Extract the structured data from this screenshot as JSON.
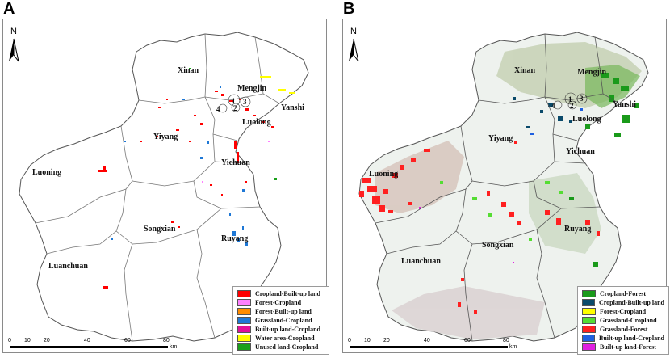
{
  "panels": [
    {
      "letter": "A",
      "north": "N",
      "districts": [
        "Xinan",
        "Mengjin",
        "Yanshi",
        "Luolong",
        "Yiyang",
        "Yichuan",
        "Luoning",
        "Songxian",
        "Ruyang",
        "Luanchuan"
      ],
      "zones": [
        "1",
        "2",
        "3",
        "4"
      ],
      "legend": [
        {
          "label": "Cropland-Built-up land",
          "color": "#ff0000"
        },
        {
          "label": "Forest-Cropland",
          "color": "#ff80ff"
        },
        {
          "label": "Forest-Built-up land",
          "color": "#ff8c00"
        },
        {
          "label": "Grassland-Cropland",
          "color": "#1e78d6"
        },
        {
          "label": "Built-up land-Cropland",
          "color": "#e0129a"
        },
        {
          "label": "Water area-Cropland",
          "color": "#ffff00"
        },
        {
          "label": "Unused land-Cropland",
          "color": "#1aa01a"
        }
      ],
      "scale": {
        "ticks": [
          "0",
          "10",
          "20",
          "40",
          "60",
          "80"
        ],
        "unit": "km"
      }
    },
    {
      "letter": "B",
      "north": "N",
      "districts": [
        "Xinan",
        "Mengjin",
        "Yanshi",
        "Luolong",
        "Yiyang",
        "Yichuan",
        "Luoning",
        "Songxian",
        "Ruyang",
        "Luanchuan"
      ],
      "zones": [
        "1",
        "2",
        "3",
        "4"
      ],
      "legend": [
        {
          "label": "Cropland-Forest",
          "color": "#1a9a1a"
        },
        {
          "label": "Cropland-Built-up land",
          "color": "#0a4a6a"
        },
        {
          "label": "Forest-Cropland",
          "color": "#ffff00"
        },
        {
          "label": "Grassland-Cropland",
          "color": "#55dd33"
        },
        {
          "label": "Grassland-Forest",
          "color": "#ff2020"
        },
        {
          "label": "Built-up land-Cropland",
          "color": "#1e60e0"
        },
        {
          "label": "Built-up land-Forest",
          "color": "#e020e0"
        }
      ],
      "scale": {
        "ticks": [
          "0",
          "10",
          "20",
          "40",
          "60",
          "80"
        ],
        "unit": "km"
      }
    }
  ]
}
